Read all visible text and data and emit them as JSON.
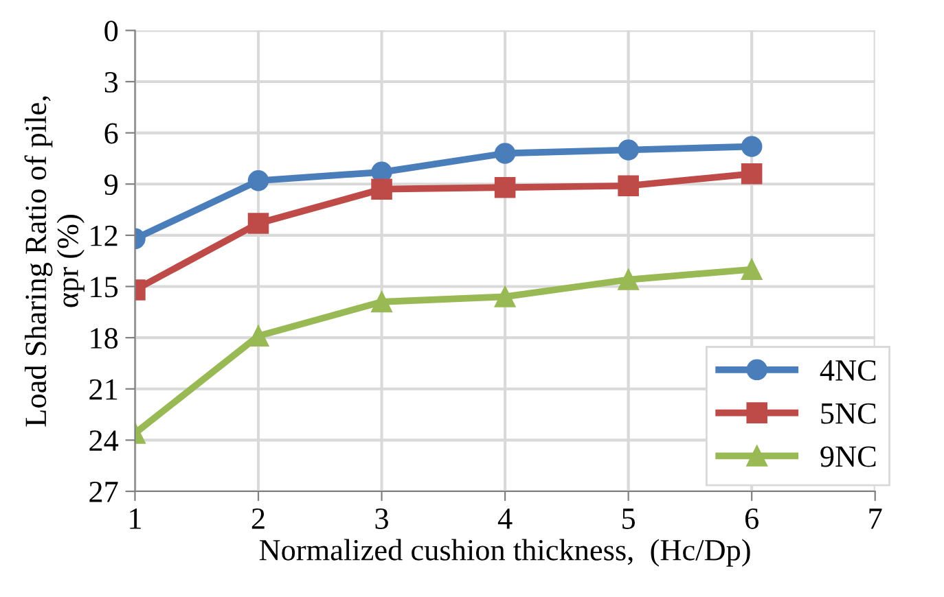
{
  "chart_data": {
    "type": "line",
    "xlabel": "Normalized cushion thickness,  (Hc/Dp)",
    "ylabel": "Load Sharing Ratio of pile,\nαpr (%)",
    "x": [
      1,
      2,
      3,
      4,
      5,
      6
    ],
    "series": [
      {
        "name": "4NC",
        "color": "#4a7ebb",
        "marker": "circle",
        "values": [
          12.2,
          8.8,
          8.3,
          7.2,
          7.0,
          6.8
        ]
      },
      {
        "name": "5NC",
        "color": "#be4b48",
        "marker": "square",
        "values": [
          15.2,
          11.3,
          9.3,
          9.2,
          9.1,
          8.4
        ]
      },
      {
        "name": "9NC",
        "color": "#98b954",
        "marker": "triangle",
        "values": [
          23.6,
          17.9,
          15.9,
          15.6,
          14.6,
          14.0
        ]
      }
    ],
    "xlim": [
      1,
      7
    ],
    "xticks": [
      1,
      2,
      3,
      4,
      5,
      6,
      7
    ],
    "ylim": [
      27,
      0
    ],
    "yticks": [
      0,
      3,
      6,
      9,
      12,
      15,
      18,
      21,
      24,
      27
    ],
    "grid": true,
    "legend": "bottom right",
    "line_style": "solid"
  }
}
